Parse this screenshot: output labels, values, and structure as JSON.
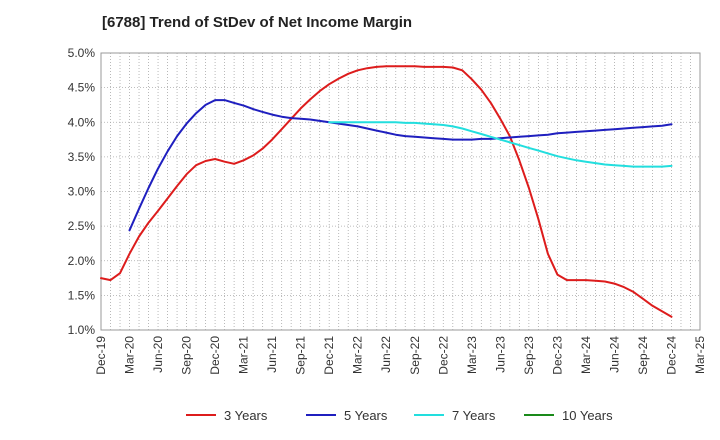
{
  "chart_data": {
    "type": "line",
    "title": "[6788]  Trend of StDev of Net Income Margin",
    "xlabel": "",
    "ylabel": "",
    "x_ticks": [
      "Dec-19",
      "Mar-20",
      "Jun-20",
      "Sep-20",
      "Dec-20",
      "Mar-21",
      "Jun-21",
      "Sep-21",
      "Dec-21",
      "Mar-22",
      "Jun-22",
      "Sep-22",
      "Dec-22",
      "Mar-23",
      "Jun-23",
      "Sep-23",
      "Dec-23",
      "Mar-24",
      "Jun-24",
      "Sep-24",
      "Dec-24",
      "Mar-25"
    ],
    "y_ticks": [
      "1.0%",
      "1.5%",
      "2.0%",
      "2.5%",
      "3.0%",
      "3.5%",
      "4.0%",
      "4.5%",
      "5.0%"
    ],
    "ylim": [
      1.0,
      5.0
    ],
    "x_range": [
      "Dec-19",
      "Mar-25"
    ],
    "grid": "dotted, both axes",
    "legend_position": "bottom",
    "series": [
      {
        "name": "3 Years",
        "color": "#dd1c1c",
        "points": [
          [
            "Dec-19",
            1.75
          ],
          [
            "Jan-20",
            1.72
          ],
          [
            "Feb-20",
            1.82
          ],
          [
            "Mar-20",
            2.1
          ],
          [
            "Apr-20",
            2.35
          ],
          [
            "May-20",
            2.55
          ],
          [
            "Jun-20",
            2.72
          ],
          [
            "Jul-20",
            2.9
          ],
          [
            "Aug-20",
            3.08
          ],
          [
            "Sep-20",
            3.25
          ],
          [
            "Oct-20",
            3.38
          ],
          [
            "Nov-20",
            3.44
          ],
          [
            "Dec-20",
            3.47
          ],
          [
            "Jan-21",
            3.43
          ],
          [
            "Feb-21",
            3.4
          ],
          [
            "Mar-21",
            3.45
          ],
          [
            "Apr-21",
            3.52
          ],
          [
            "May-21",
            3.62
          ],
          [
            "Jun-21",
            3.75
          ],
          [
            "Jul-21",
            3.9
          ],
          [
            "Aug-21",
            4.05
          ],
          [
            "Sep-21",
            4.2
          ],
          [
            "Oct-21",
            4.33
          ],
          [
            "Nov-21",
            4.45
          ],
          [
            "Dec-21",
            4.55
          ],
          [
            "Jan-22",
            4.63
          ],
          [
            "Feb-22",
            4.7
          ],
          [
            "Mar-22",
            4.75
          ],
          [
            "Apr-22",
            4.78
          ],
          [
            "May-22",
            4.8
          ],
          [
            "Jun-22",
            4.81
          ],
          [
            "Jul-22",
            4.81
          ],
          [
            "Aug-22",
            4.81
          ],
          [
            "Sep-22",
            4.81
          ],
          [
            "Oct-22",
            4.8
          ],
          [
            "Nov-22",
            4.8
          ],
          [
            "Dec-22",
            4.8
          ],
          [
            "Jan-23",
            4.79
          ],
          [
            "Feb-23",
            4.75
          ],
          [
            "Mar-23",
            4.62
          ],
          [
            "Apr-23",
            4.47
          ],
          [
            "May-23",
            4.28
          ],
          [
            "Jun-23",
            4.05
          ],
          [
            "Jul-23",
            3.8
          ],
          [
            "Aug-23",
            3.45
          ],
          [
            "Sep-23",
            3.05
          ],
          [
            "Oct-23",
            2.6
          ],
          [
            "Nov-23",
            2.1
          ],
          [
            "Dec-23",
            1.8
          ],
          [
            "Jan-24",
            1.72
          ],
          [
            "Feb-24",
            1.72
          ],
          [
            "Mar-24",
            1.72
          ],
          [
            "Apr-24",
            1.71
          ],
          [
            "May-24",
            1.7
          ],
          [
            "Jun-24",
            1.67
          ],
          [
            "Jul-24",
            1.62
          ],
          [
            "Aug-24",
            1.55
          ],
          [
            "Sep-24",
            1.45
          ],
          [
            "Oct-24",
            1.35
          ],
          [
            "Nov-24",
            1.27
          ],
          [
            "Dec-24",
            1.19
          ]
        ]
      },
      {
        "name": "5 Years",
        "color": "#1f1fbf",
        "points": [
          [
            "Mar-20",
            2.44
          ],
          [
            "Apr-20",
            2.75
          ],
          [
            "May-20",
            3.05
          ],
          [
            "Jun-20",
            3.33
          ],
          [
            "Jul-20",
            3.58
          ],
          [
            "Aug-20",
            3.8
          ],
          [
            "Sep-20",
            3.98
          ],
          [
            "Oct-20",
            4.13
          ],
          [
            "Nov-20",
            4.25
          ],
          [
            "Dec-20",
            4.32
          ],
          [
            "Jan-21",
            4.32
          ],
          [
            "Feb-21",
            4.28
          ],
          [
            "Mar-21",
            4.24
          ],
          [
            "Apr-21",
            4.19
          ],
          [
            "May-21",
            4.15
          ],
          [
            "Jun-21",
            4.11
          ],
          [
            "Jul-21",
            4.08
          ],
          [
            "Aug-21",
            4.06
          ],
          [
            "Sep-21",
            4.05
          ],
          [
            "Oct-21",
            4.04
          ],
          [
            "Nov-21",
            4.02
          ],
          [
            "Dec-21",
            4.0
          ],
          [
            "Jan-22",
            3.98
          ],
          [
            "Feb-22",
            3.96
          ],
          [
            "Mar-22",
            3.94
          ],
          [
            "Apr-22",
            3.91
          ],
          [
            "May-22",
            3.88
          ],
          [
            "Jun-22",
            3.85
          ],
          [
            "Jul-22",
            3.82
          ],
          [
            "Aug-22",
            3.8
          ],
          [
            "Sep-22",
            3.79
          ],
          [
            "Oct-22",
            3.78
          ],
          [
            "Nov-22",
            3.77
          ],
          [
            "Dec-22",
            3.76
          ],
          [
            "Jan-23",
            3.75
          ],
          [
            "Feb-23",
            3.75
          ],
          [
            "Mar-23",
            3.75
          ],
          [
            "Apr-23",
            3.76
          ],
          [
            "May-23",
            3.76
          ],
          [
            "Jun-23",
            3.77
          ],
          [
            "Jul-23",
            3.78
          ],
          [
            "Aug-23",
            3.79
          ],
          [
            "Sep-23",
            3.8
          ],
          [
            "Oct-23",
            3.81
          ],
          [
            "Nov-23",
            3.82
          ],
          [
            "Dec-23",
            3.84
          ],
          [
            "Jan-24",
            3.85
          ],
          [
            "Feb-24",
            3.86
          ],
          [
            "Mar-24",
            3.87
          ],
          [
            "Apr-24",
            3.88
          ],
          [
            "May-24",
            3.89
          ],
          [
            "Jun-24",
            3.9
          ],
          [
            "Jul-24",
            3.91
          ],
          [
            "Aug-24",
            3.92
          ],
          [
            "Sep-24",
            3.93
          ],
          [
            "Oct-24",
            3.94
          ],
          [
            "Nov-24",
            3.95
          ],
          [
            "Dec-24",
            3.97
          ]
        ]
      },
      {
        "name": "7 Years",
        "color": "#22dede",
        "points": [
          [
            "Dec-21",
            4.0
          ],
          [
            "Jan-22",
            4.0
          ],
          [
            "Feb-22",
            4.0
          ],
          [
            "Mar-22",
            4.0
          ],
          [
            "Apr-22",
            4.0
          ],
          [
            "May-22",
            4.0
          ],
          [
            "Jun-22",
            4.0
          ],
          [
            "Jul-22",
            4.0
          ],
          [
            "Aug-22",
            3.99
          ],
          [
            "Sep-22",
            3.99
          ],
          [
            "Oct-22",
            3.98
          ],
          [
            "Nov-22",
            3.97
          ],
          [
            "Dec-22",
            3.96
          ],
          [
            "Jan-23",
            3.94
          ],
          [
            "Feb-23",
            3.91
          ],
          [
            "Mar-23",
            3.87
          ],
          [
            "Apr-23",
            3.83
          ],
          [
            "May-23",
            3.79
          ],
          [
            "Jun-23",
            3.75
          ],
          [
            "Jul-23",
            3.71
          ],
          [
            "Aug-23",
            3.67
          ],
          [
            "Sep-23",
            3.63
          ],
          [
            "Oct-23",
            3.59
          ],
          [
            "Nov-23",
            3.55
          ],
          [
            "Dec-23",
            3.51
          ],
          [
            "Jan-24",
            3.48
          ],
          [
            "Feb-24",
            3.45
          ],
          [
            "Mar-24",
            3.43
          ],
          [
            "Apr-24",
            3.41
          ],
          [
            "May-24",
            3.39
          ],
          [
            "Jun-24",
            3.38
          ],
          [
            "Jul-24",
            3.37
          ],
          [
            "Aug-24",
            3.36
          ],
          [
            "Sep-24",
            3.36
          ],
          [
            "Oct-24",
            3.36
          ],
          [
            "Nov-24",
            3.36
          ],
          [
            "Dec-24",
            3.37
          ]
        ]
      },
      {
        "name": "10 Years",
        "color": "#1a8a1a",
        "points": []
      }
    ]
  }
}
